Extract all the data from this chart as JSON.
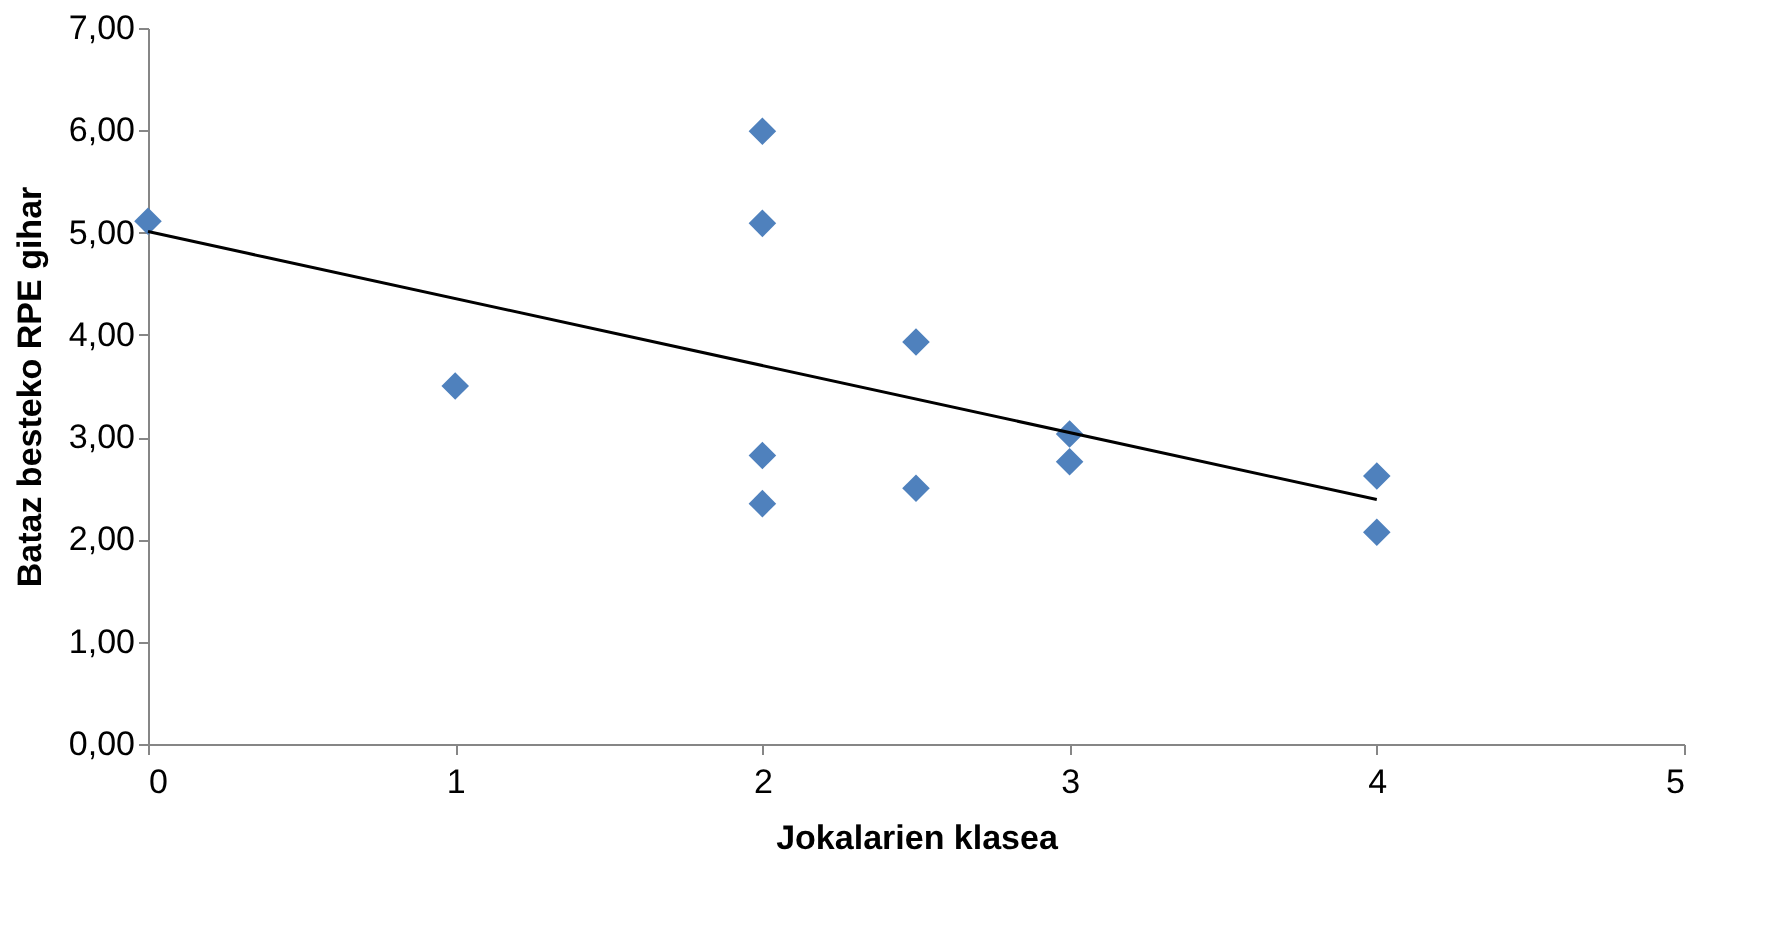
{
  "chart_data": {
    "type": "scatter",
    "xlabel": "Jokalarien klasea",
    "ylabel": "Bataz besteko RPE gihar",
    "marker": "diamond",
    "xlim": [
      0,
      5
    ],
    "xticks": [
      0,
      1,
      2,
      3,
      4,
      5
    ],
    "ylim": [
      0,
      7
    ],
    "yticks": [
      {
        "value": 0,
        "label": "0,00"
      },
      {
        "value": 1,
        "label": "1,00"
      },
      {
        "value": 2,
        "label": "2,00"
      },
      {
        "value": 3,
        "label": "3,00"
      },
      {
        "value": 4,
        "label": "4,00"
      },
      {
        "value": 5,
        "label": "5,00"
      },
      {
        "value": 6,
        "label": "6,00"
      },
      {
        "value": 7,
        "label": "7,00"
      }
    ],
    "series": [
      {
        "color": "#4f81bd",
        "x": [
          0,
          1,
          2,
          2,
          2,
          2,
          2.5,
          2.5,
          3,
          3,
          4,
          4
        ],
        "values": [
          5.11,
          3.5,
          5.99,
          5.09,
          2.82,
          2.35,
          3.93,
          2.5,
          3.03,
          2.76,
          2.62,
          2.07
        ]
      },
      {
        "type": "line",
        "color": "#000000",
        "marker": "none",
        "line_style": "solid",
        "x": [
          0,
          4
        ],
        "values": [
          5.01,
          2.39
        ]
      }
    ]
  }
}
